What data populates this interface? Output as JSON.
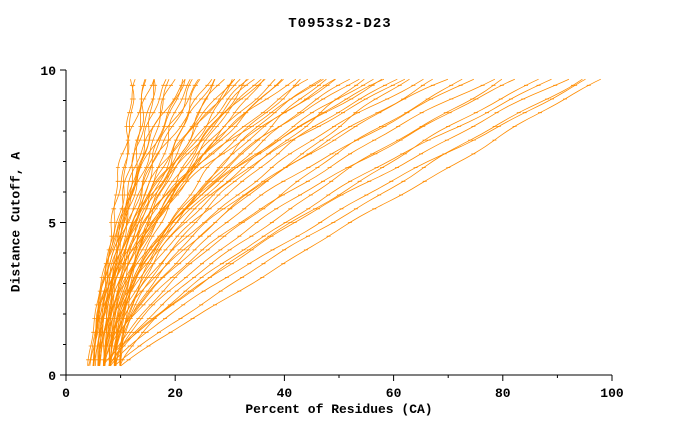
{
  "chart_data": {
    "type": "line",
    "title": "T0953s2-D23",
    "xlabel": "Percent of Residues (CA)",
    "ylabel": "Distance Cutoff, A",
    "xlim": [
      0,
      100
    ],
    "ylim": [
      0,
      10
    ],
    "x_ticks": [
      0,
      20,
      40,
      60,
      80,
      100
    ],
    "x_minor_step": 10,
    "y_ticks": [
      0,
      5,
      10
    ],
    "y_minor_step": 1,
    "line_color": "#ff8c00",
    "axis_color": "#000000",
    "background": "#ffffff",
    "legend": "none",
    "grid": false,
    "y_start": 0.3,
    "y_end": 9.7,
    "series_format": [
      "percent_at_cutoff_0.3A",
      "percent_at_cutoff_9.7A",
      "shape_exponent"
    ],
    "series": [
      [
        4,
        12.5,
        0.9
      ],
      [
        5,
        13,
        1.1
      ],
      [
        4.5,
        14,
        1.0
      ],
      [
        6,
        15,
        1.2
      ],
      [
        5,
        15.5,
        0.95
      ],
      [
        7,
        16,
        1.3
      ],
      [
        6,
        17,
        1.1
      ],
      [
        5.5,
        18,
        1.25
      ],
      [
        4,
        19,
        1.4
      ],
      [
        6,
        20,
        1.5
      ],
      [
        7,
        21,
        1.3
      ],
      [
        5,
        22,
        1.7
      ],
      [
        8,
        23,
        1.5
      ],
      [
        6,
        24,
        1.8
      ],
      [
        7,
        25,
        1.4
      ],
      [
        9,
        26,
        1.6
      ],
      [
        5,
        27,
        1.9
      ],
      [
        8,
        28,
        1.5
      ],
      [
        6,
        21.5,
        2.0
      ],
      [
        7,
        23.5,
        1.7
      ],
      [
        5,
        29,
        1.6
      ],
      [
        7,
        30,
        1.9
      ],
      [
        6,
        31,
        1.5
      ],
      [
        8,
        32,
        2.1
      ],
      [
        9,
        33,
        1.7
      ],
      [
        5,
        34,
        2.0
      ],
      [
        7,
        35,
        1.6
      ],
      [
        10,
        36,
        1.9
      ],
      [
        6,
        37,
        2.2
      ],
      [
        8,
        38,
        1.8
      ],
      [
        7,
        31.5,
        2.3
      ],
      [
        9,
        34.5,
        2.0
      ],
      [
        6,
        39,
        1.7
      ],
      [
        8,
        40,
        2.0
      ],
      [
        7,
        42,
        2.2
      ],
      [
        9,
        43,
        1.8
      ],
      [
        5,
        45,
        2.1
      ],
      [
        10,
        46,
        1.9
      ],
      [
        7,
        47,
        2.3
      ],
      [
        8,
        48,
        1.7
      ],
      [
        9,
        49,
        2.0
      ],
      [
        6,
        50,
        2.2
      ],
      [
        7,
        52,
        1.8
      ],
      [
        9,
        53,
        2.1
      ],
      [
        8,
        55,
        1.6
      ],
      [
        10,
        56,
        2.0
      ],
      [
        6,
        58,
        1.9
      ],
      [
        9,
        59,
        2.2
      ],
      [
        7,
        60,
        1.7
      ],
      [
        8,
        62,
        2.0
      ],
      [
        8,
        63,
        1.5
      ],
      [
        9,
        65,
        1.8
      ],
      [
        7,
        68,
        1.6
      ],
      [
        10,
        70,
        1.9
      ],
      [
        8,
        72,
        1.4
      ],
      [
        9,
        75,
        1.7
      ],
      [
        7,
        78,
        1.5
      ],
      [
        8,
        80,
        1.3
      ],
      [
        9,
        83,
        1.5
      ],
      [
        7,
        86,
        1.2
      ],
      [
        10,
        89,
        1.4
      ],
      [
        8,
        92,
        1.3
      ],
      [
        9,
        94,
        1.1
      ],
      [
        8,
        96,
        1.2
      ],
      [
        10,
        98,
        1.05
      ]
    ]
  }
}
